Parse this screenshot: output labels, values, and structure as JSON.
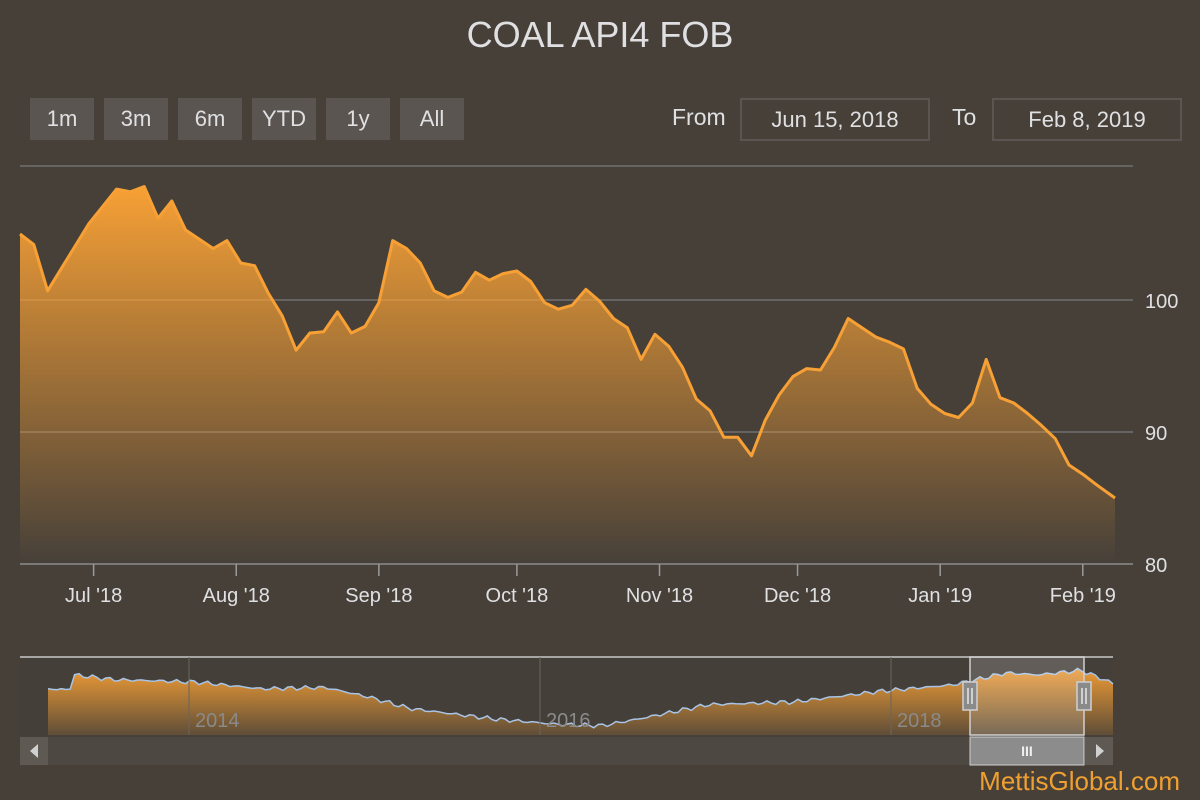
{
  "title": "COAL API4 FOB",
  "range_buttons": [
    "1m",
    "3m",
    "6m",
    "YTD",
    "1y",
    "All"
  ],
  "from_label": "From",
  "to_label": "To",
  "from_value": "Jun 15, 2018",
  "to_value": "Feb 8, 2019",
  "credit": "MettisGlobal.com",
  "navigator": {
    "year_labels": [
      "2014",
      "2016",
      "2018"
    ],
    "handle_glyph": "III"
  },
  "colors": {
    "line": "#f7a035",
    "area_top": "#f7a035",
    "background": "#464039",
    "navigator_line": "#a8c4e6"
  },
  "icons": [
    "arrow-left-icon",
    "arrow-right-icon",
    "scrollbar-grip-icon",
    "navigator-handle-icon"
  ],
  "chart_data": {
    "type": "area",
    "title": "COAL API4 FOB",
    "x_tick_labels": [
      "Jul '18",
      "Aug '18",
      "Sep '18",
      "Oct '18",
      "Nov '18",
      "Dec '18",
      "Jan '19",
      "Feb '19"
    ],
    "y_tick_labels": [
      "80",
      "90",
      "100"
    ],
    "ylim": [
      80,
      110
    ],
    "grid": "horizontal",
    "x": [
      "2018-06-15",
      "2018-06-18",
      "2018-06-21",
      "2018-06-24",
      "2018-06-27",
      "2018-06-30",
      "2018-07-03",
      "2018-07-06",
      "2018-07-09",
      "2018-07-12",
      "2018-07-15",
      "2018-07-18",
      "2018-07-21",
      "2018-07-24",
      "2018-07-27",
      "2018-07-30",
      "2018-08-02",
      "2018-08-05",
      "2018-08-08",
      "2018-08-11",
      "2018-08-14",
      "2018-08-17",
      "2018-08-20",
      "2018-08-23",
      "2018-08-26",
      "2018-08-29",
      "2018-09-01",
      "2018-09-04",
      "2018-09-07",
      "2018-09-10",
      "2018-09-13",
      "2018-09-16",
      "2018-09-19",
      "2018-09-22",
      "2018-09-25",
      "2018-09-28",
      "2018-10-01",
      "2018-10-04",
      "2018-10-07",
      "2018-10-10",
      "2018-10-13",
      "2018-10-16",
      "2018-10-19",
      "2018-10-22",
      "2018-10-25",
      "2018-10-28",
      "2018-10-31",
      "2018-11-03",
      "2018-11-06",
      "2018-11-09",
      "2018-11-12",
      "2018-11-15",
      "2018-11-18",
      "2018-11-21",
      "2018-11-24",
      "2018-11-27",
      "2018-11-30",
      "2018-12-03",
      "2018-12-06",
      "2018-12-09",
      "2018-12-12",
      "2018-12-15",
      "2018-12-18",
      "2018-12-21",
      "2018-12-24",
      "2018-12-27",
      "2018-12-30",
      "2019-01-02",
      "2019-01-05",
      "2019-01-08",
      "2019-01-11",
      "2019-01-14",
      "2019-01-17",
      "2019-01-20",
      "2019-01-23",
      "2019-01-26",
      "2019-01-29",
      "2019-02-01",
      "2019-02-04",
      "2019-02-08"
    ],
    "values": [
      105,
      104.2,
      100.7,
      102.4,
      104.1,
      105.8,
      107.1,
      108.4,
      108.2,
      108.6,
      106.2,
      107.5,
      105.3,
      104.6,
      103.9,
      104.5,
      102.8,
      102.6,
      100.5,
      98.8,
      96.2,
      97.5,
      97.6,
      99.1,
      97.5,
      98.0,
      99.8,
      104.5,
      103.9,
      102.8,
      100.7,
      100.2,
      100.6,
      102.1,
      101.5,
      102.0,
      102.2,
      101.4,
      99.8,
      99.3,
      99.6,
      100.8,
      99.9,
      98.6,
      97.9,
      95.5,
      97.4,
      96.5,
      94.9,
      92.5,
      91.6,
      89.6,
      89.6,
      88.2,
      90.9,
      92.8,
      94.2,
      94.8,
      94.7,
      96.4,
      98.6,
      97.9,
      97.2,
      96.8,
      96.3,
      93.3,
      92.1,
      91.4,
      91.1,
      92.2,
      95.5,
      92.6,
      92.2,
      91.4,
      90.5,
      89.5,
      87.5,
      86.8,
      86.0,
      85.0
    ],
    "navigator": {
      "x_labels": [
        "2014",
        "2016",
        "2018"
      ],
      "selected_range": [
        "Jun 15, 2018",
        "Feb 8, 2019"
      ]
    }
  }
}
